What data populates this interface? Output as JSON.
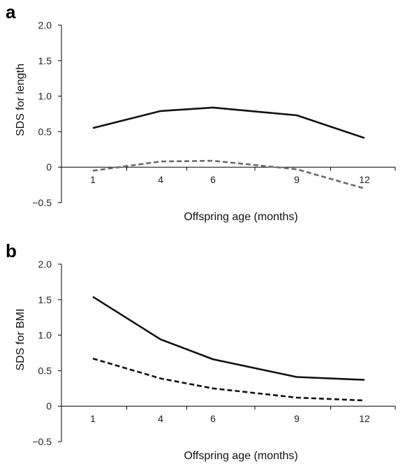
{
  "chart_data": [
    {
      "type": "line",
      "panel_label": "a",
      "xlabel": "Offspring age (months)",
      "ylabel": "SDS for length",
      "categories": [
        "1",
        "4",
        "6",
        "9",
        "12"
      ],
      "yticks": [
        "2.0",
        "1.5",
        "1.0",
        "0.5",
        "0",
        "−0.5"
      ],
      "ytick_values": [
        2.0,
        1.5,
        1.0,
        0.5,
        0,
        -0.5
      ],
      "ylim": [
        -0.5,
        2.0
      ],
      "grid": false,
      "series": [
        {
          "values": [
            0.55,
            0.79,
            0.84,
            0.73,
            0.41
          ],
          "color": "#111111",
          "style": "solid"
        },
        {
          "values": [
            -0.05,
            0.08,
            0.09,
            -0.03,
            -0.3
          ],
          "color": "#6b6b6b",
          "style": "dashed"
        }
      ]
    },
    {
      "type": "line",
      "panel_label": "b",
      "xlabel": "Offspring age (months)",
      "ylabel": "SDS for BMI",
      "categories": [
        "1",
        "4",
        "6",
        "9",
        "12"
      ],
      "yticks": [
        "2.0",
        "1.5",
        "1.0",
        "0.5",
        "0",
        "−0.5"
      ],
      "ytick_values": [
        2.0,
        1.5,
        1.0,
        0.5,
        0,
        -0.5
      ],
      "ylim": [
        -0.5,
        2.0
      ],
      "grid": false,
      "series": [
        {
          "values": [
            1.54,
            0.94,
            0.66,
            0.41,
            0.37
          ],
          "color": "#111111",
          "style": "solid"
        },
        {
          "values": [
            0.67,
            0.39,
            0.25,
            0.12,
            0.08
          ],
          "color": "#111111",
          "style": "dashed"
        }
      ]
    }
  ]
}
